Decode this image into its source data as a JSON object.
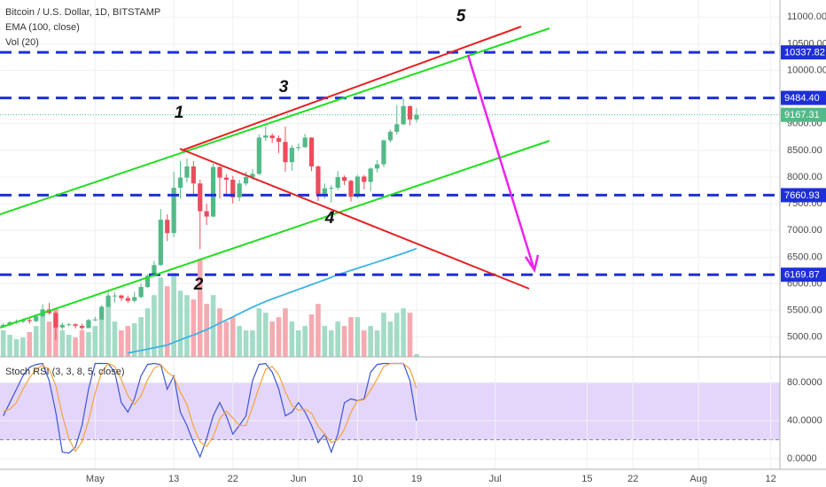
{
  "chart_data": [
    {
      "type": "candlestick",
      "title": "Bitcoin / U.S. Dollar, 1D, BITSTAMP",
      "up_color": "#53b987",
      "down_color": "#eb4d5c",
      "xlim": [
        -0.5,
        118.4
      ],
      "ylim": [
        4630,
        11320
      ],
      "yticks": [
        {
          "value": 5000,
          "label": "5000.00"
        },
        {
          "value": 5500,
          "label": "5500.00"
        },
        {
          "value": 6000,
          "label": "6000.00"
        },
        {
          "value": 6500,
          "label": "6500.00"
        },
        {
          "value": 7000,
          "label": "7000.00"
        },
        {
          "value": 7500,
          "label": "7500.00"
        },
        {
          "value": 8000,
          "label": "8000.00"
        },
        {
          "value": 8500,
          "label": "8500.00"
        },
        {
          "value": 9000,
          "label": "9000.00"
        },
        {
          "value": 10000,
          "label": "10000.00"
        },
        {
          "value": 10500,
          "label": "10500.00"
        },
        {
          "value": 11000,
          "label": "11000.00"
        }
      ],
      "ohlc": [
        [
          5200,
          5260,
          5170,
          5230
        ],
        [
          5230,
          5300,
          5200,
          5280
        ],
        [
          5280,
          5330,
          5250,
          5290
        ],
        [
          5290,
          5350,
          5260,
          5320
        ],
        [
          5320,
          5350,
          5250,
          5300
        ],
        [
          5300,
          5420,
          5280,
          5390
        ],
        [
          5390,
          5620,
          5370,
          5520
        ],
        [
          5520,
          5640,
          5420,
          5450
        ],
        [
          5450,
          5480,
          4950,
          5180
        ],
        [
          5180,
          5270,
          5140,
          5230
        ],
        [
          5230,
          5270,
          5200,
          5240
        ],
        [
          5240,
          5260,
          5160,
          5210
        ],
        [
          5210,
          5250,
          5140,
          5170
        ],
        [
          5170,
          5340,
          5160,
          5320
        ],
        [
          5320,
          5380,
          5300,
          5330
        ],
        [
          5330,
          5600,
          5320,
          5570
        ],
        [
          5570,
          5880,
          5560,
          5780
        ],
        [
          5780,
          5840,
          5650,
          5780
        ],
        [
          5780,
          5800,
          5680,
          5730
        ],
        [
          5730,
          5780,
          5640,
          5680
        ],
        [
          5680,
          5850,
          5650,
          5750
        ],
        [
          5750,
          6000,
          5730,
          5940
        ],
        [
          5940,
          6180,
          5920,
          6150
        ],
        [
          6150,
          6430,
          6120,
          6350
        ],
        [
          6350,
          7400,
          6340,
          7200
        ],
        [
          7200,
          7300,
          6800,
          6950
        ],
        [
          6950,
          8100,
          6870,
          7800
        ],
        [
          7800,
          8300,
          7600,
          7990
        ],
        [
          7990,
          8350,
          7900,
          8200
        ],
        [
          8200,
          8300,
          7650,
          7880
        ],
        [
          7880,
          7950,
          6650,
          7360
        ],
        [
          7360,
          7500,
          7100,
          7260
        ],
        [
          7260,
          8250,
          7250,
          8190
        ],
        [
          8190,
          8200,
          7600,
          7990
        ],
        [
          7990,
          8050,
          7650,
          7950
        ],
        [
          7950,
          8020,
          7500,
          7620
        ],
        [
          7620,
          7950,
          7550,
          7880
        ],
        [
          7880,
          8100,
          7840,
          8000
        ],
        [
          8000,
          8150,
          7950,
          8060
        ],
        [
          8060,
          8800,
          8040,
          8740
        ],
        [
          8740,
          8950,
          8680,
          8780
        ],
        [
          8780,
          8820,
          8640,
          8730
        ],
        [
          8730,
          8780,
          8450,
          8660
        ],
        [
          8660,
          8950,
          8100,
          8280
        ],
        [
          8280,
          8600,
          8120,
          8550
        ],
        [
          8550,
          8630,
          8500,
          8560
        ],
        [
          8560,
          8810,
          8550,
          8740
        ],
        [
          8740,
          8750,
          8110,
          8200
        ],
        [
          8200,
          8220,
          7550,
          7680
        ],
        [
          7680,
          7880,
          7600,
          7790
        ],
        [
          7790,
          7850,
          7520,
          7800
        ],
        [
          7800,
          8110,
          7760,
          8000
        ],
        [
          8000,
          8030,
          7850,
          7930
        ],
        [
          7930,
          7950,
          7540,
          7630
        ],
        [
          7630,
          8040,
          7600,
          8010
        ],
        [
          8010,
          8040,
          7770,
          7910
        ],
        [
          7910,
          8180,
          7730,
          8160
        ],
        [
          8160,
          8320,
          8090,
          8240
        ],
        [
          8240,
          8700,
          8190,
          8690
        ],
        [
          8690,
          8890,
          8650,
          8850
        ],
        [
          8850,
          9350,
          8800,
          8990
        ],
        [
          8990,
          9480,
          8970,
          9330
        ],
        [
          9330,
          9340,
          8970,
          9080
        ],
        [
          9080,
          9290,
          9020,
          9167.31
        ]
      ],
      "overlays": [
        {
          "name": "EMA (100, close)",
          "color": "#3bb3e4",
          "values": [
            null,
            null,
            null,
            null,
            null,
            null,
            null,
            null,
            null,
            null,
            null,
            null,
            null,
            null,
            null,
            null,
            null,
            null,
            null,
            4700,
            4725,
            4750,
            4775,
            4800,
            4825,
            4850,
            4900,
            4950,
            4995,
            5040,
            5090,
            5140,
            5200,
            5260,
            5320,
            5380,
            5440,
            5500,
            5560,
            5615,
            5670,
            5715,
            5760,
            5805,
            5850,
            5895,
            5940,
            5985,
            6030,
            6075,
            6120,
            6170,
            6210,
            6250,
            6290,
            6330,
            6370,
            6410,
            6450,
            6490,
            6530,
            6570,
            6615,
            6660
          ]
        }
      ],
      "volume": {
        "name": "Vol (20)",
        "up_color": "#a3dbc6",
        "down_color": "#f5aab1",
        "ylim": [
          0,
          60000
        ],
        "values": [
          13800,
          11500,
          9200,
          10100,
          12900,
          16100,
          22100,
          18400,
          25300,
          13800,
          11500,
          10100,
          13800,
          12900,
          16100,
          20700,
          27600,
          18400,
          13800,
          16100,
          17500,
          20700,
          25300,
          32200,
          41400,
          36800,
          43700,
          34500,
          32200,
          29900,
          51100,
          27600,
          32200,
          25300,
          18400,
          20700,
          16100,
          13800,
          13800,
          25300,
          23000,
          18400,
          20700,
          25300,
          18400,
          13800,
          16100,
          22100,
          27600,
          16100,
          13800,
          18400,
          16100,
          20700,
          20700,
          13800,
          16100,
          13800,
          23000,
          18400,
          23000,
          25300,
          23000,
          1400
        ]
      },
      "levels": [
        10337.82,
        {
          "value": 9484.4,
          "label": "9484.40"
        },
        7660.93,
        6169.87
      ],
      "level_color": "#1f2fd6",
      "last_price": 9167.31,
      "annotations": [
        "1",
        "2",
        "3",
        "4",
        "5"
      ]
    },
    {
      "type": "line",
      "title": "Stoch RSI (3, 3, 8, 5, close)",
      "xlim": [
        -0.5,
        118.4
      ],
      "ylim": [
        -11,
        107
      ],
      "yticks": [
        {
          "value": 0,
          "label": "0.0000"
        },
        {
          "value": 40,
          "label": "40.0000"
        },
        {
          "value": 80,
          "label": "80.0000"
        }
      ],
      "bands": [
        20,
        80
      ],
      "band_color": "#e4d6fa",
      "xticks": [
        {
          "value": 14,
          "label": "May"
        },
        {
          "value": 26,
          "label": "13"
        },
        {
          "value": 35,
          "label": "22"
        },
        {
          "value": 45,
          "label": "Jun"
        },
        {
          "value": 54,
          "label": "10"
        },
        {
          "value": 63,
          "label": "19"
        },
        {
          "value": 75,
          "label": "Jul"
        },
        {
          "value": 89,
          "label": "15"
        },
        {
          "value": 96,
          "label": "22"
        },
        {
          "value": 106,
          "label": "Aug"
        },
        {
          "value": 117,
          "label": "12"
        }
      ],
      "series": [
        {
          "color": "#3b55d6",
          "values": [
            45,
            59,
            73,
            87,
            96,
            99,
            100,
            82,
            49,
            7,
            6,
            12,
            35,
            73,
            100,
            100,
            100,
            91,
            59,
            49,
            63,
            87,
            99,
            100,
            99,
            73,
            87,
            49,
            35,
            17,
            2,
            21,
            45,
            59,
            45,
            26,
            35,
            45,
            82,
            99,
            100,
            91,
            73,
            45,
            49,
            59,
            49,
            35,
            17,
            26,
            7,
            26,
            59,
            63,
            61,
            63,
            91,
            99,
            100,
            100,
            100,
            100,
            82,
            40
          ]
        },
        {
          "color": "#f5a33a",
          "values": [
            50,
            52,
            59,
            73,
            85,
            94,
            98,
            94,
            77,
            46,
            21,
            8,
            18,
            40,
            69,
            91,
            100,
            97,
            83,
            66,
            57,
            66,
            83,
            95,
            99,
            91,
            86,
            70,
            57,
            34,
            18,
            13,
            23,
            42,
            50,
            43,
            35,
            35,
            54,
            75,
            94,
            97,
            88,
            70,
            56,
            51,
            52,
            48,
            34,
            26,
            17,
            20,
            31,
            49,
            61,
            62,
            72,
            84,
            97,
            100,
            100,
            100,
            94,
            74
          ]
        }
      ]
    }
  ]
}
